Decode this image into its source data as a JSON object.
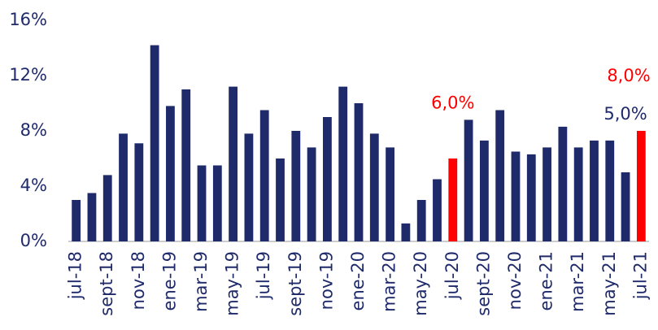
{
  "chart_data": {
    "type": "bar",
    "categories": [
      "jul-18",
      null,
      "sept-18",
      null,
      "nov-18",
      null,
      "ene-19",
      null,
      "mar-19",
      null,
      "may-19",
      null,
      "jul-19",
      null,
      "sept-19",
      null,
      "nov-19",
      null,
      "ene-20",
      null,
      "mar-20",
      null,
      "may-20",
      null,
      "jul-20",
      null,
      "sept-20",
      null,
      "nov-20",
      null,
      "ene-21",
      null,
      "mar-21",
      null,
      "may-21",
      null,
      "jul-21"
    ],
    "values": [
      3.0,
      3.5,
      4.8,
      7.8,
      7.1,
      14.2,
      9.8,
      11.0,
      5.5,
      5.5,
      11.2,
      7.8,
      9.5,
      6.0,
      8.0,
      6.8,
      9.0,
      11.2,
      10.0,
      7.8,
      6.8,
      1.3,
      3.0,
      4.5,
      6.0,
      8.8,
      7.3,
      9.5,
      6.5,
      6.3,
      6.8,
      8.3,
      6.8,
      7.3,
      7.3,
      5.0,
      8.0
    ],
    "value_labels": [
      null,
      null,
      null,
      null,
      null,
      null,
      null,
      null,
      null,
      null,
      null,
      null,
      null,
      null,
      null,
      null,
      null,
      null,
      null,
      null,
      null,
      null,
      null,
      null,
      "6,0%",
      null,
      null,
      null,
      null,
      null,
      null,
      null,
      null,
      null,
      null,
      "5,0%",
      "8,0%"
    ],
    "colors": [
      "#1f2a6b",
      "#1f2a6b",
      "#1f2a6b",
      "#1f2a6b",
      "#1f2a6b",
      "#1f2a6b",
      "#1f2a6b",
      "#1f2a6b",
      "#1f2a6b",
      "#1f2a6b",
      "#1f2a6b",
      "#1f2a6b",
      "#1f2a6b",
      "#1f2a6b",
      "#1f2a6b",
      "#1f2a6b",
      "#1f2a6b",
      "#1f2a6b",
      "#1f2a6b",
      "#1f2a6b",
      "#1f2a6b",
      "#1f2a6b",
      "#1f2a6b",
      "#1f2a6b",
      "#ff0000",
      "#1f2a6b",
      "#1f2a6b",
      "#1f2a6b",
      "#1f2a6b",
      "#1f2a6b",
      "#1f2a6b",
      "#1f2a6b",
      "#1f2a6b",
      "#1f2a6b",
      "#1f2a6b",
      "#1f2a6b",
      "#ff0000"
    ],
    "ylim": [
      0,
      16
    ],
    "yticks": [
      {
        "value": 0,
        "label": "0%"
      },
      {
        "value": 4,
        "label": "4%"
      },
      {
        "value": 8,
        "label": "8%"
      },
      {
        "value": 12,
        "label": "12%"
      },
      {
        "value": 16,
        "label": "16%"
      }
    ],
    "grid": false
  }
}
